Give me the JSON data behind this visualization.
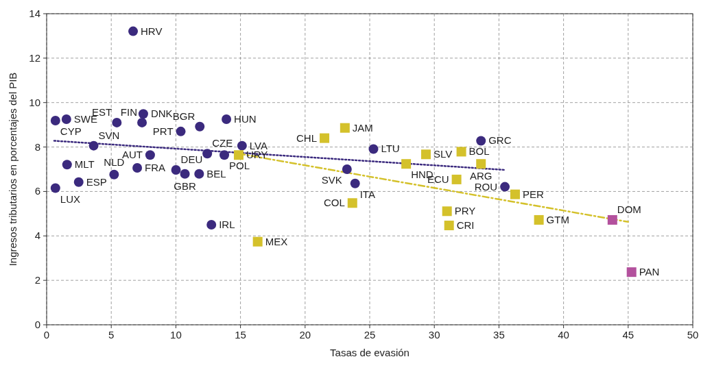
{
  "chart_data": {
    "type": "scatter",
    "xlabel": "Tasas de evasión",
    "ylabel": "Ingresos tributarios en porcentajes del PIB",
    "xlim": [
      0,
      50
    ],
    "ylim": [
      0,
      14
    ],
    "xticks": [
      0,
      5,
      10,
      15,
      20,
      25,
      30,
      35,
      40,
      45,
      50
    ],
    "yticks": [
      0,
      2,
      4,
      6,
      8,
      10,
      12,
      14
    ],
    "grid": true,
    "series": [
      {
        "marker": "circle",
        "color": "#3b2a7e",
        "x": [
          0.68,
          1.53,
          0.68,
          1.58,
          2.48,
          3.64,
          5.22,
          5.43,
          6.69,
          7.48,
          7.38,
          7.01,
          8.01,
          10.01,
          10.38,
          10.7,
          11.85,
          11.8,
          12.43,
          12.75,
          13.75,
          13.91,
          15.12,
          23.24,
          23.87,
          25.29,
          33.61,
          35.46
        ],
        "values": [
          9.19,
          9.25,
          6.15,
          7.21,
          6.42,
          8.06,
          6.76,
          9.1,
          13.21,
          9.49,
          9.1,
          7.06,
          7.64,
          6.97,
          8.7,
          6.79,
          8.92,
          6.79,
          7.7,
          4.5,
          7.64,
          9.25,
          8.06,
          7.0,
          6.36,
          7.91,
          8.28,
          6.21
        ]
      },
      {
        "marker": "square",
        "color": "#d4c12b",
        "x": [
          14.86,
          16.33,
          21.5,
          23.08,
          23.66,
          27.82,
          29.35,
          30.98,
          31.14,
          32.09,
          31.72,
          33.61,
          36.25,
          38.09
        ],
        "values": [
          7.64,
          3.74,
          8.4,
          8.86,
          5.48,
          7.24,
          7.67,
          5.11,
          4.47,
          7.79,
          6.54,
          7.24,
          5.87,
          4.72
        ]
      },
      {
        "marker": "square",
        "color": "#b3519d",
        "x": [
          43.78,
          45.26
        ],
        "values": [
          4.72,
          2.37
        ]
      },
      {
        "type": "line",
        "line_style": "dotted",
        "color": "#3b2a7e",
        "x": [
          0.58,
          35.46
        ],
        "values": [
          8.28,
          6.97
        ]
      },
      {
        "type": "line",
        "line_style": "dashed",
        "color": "#d4c12b",
        "x": [
          14.86,
          45.0
        ],
        "values": [
          7.7,
          4.63
        ]
      }
    ],
    "annotations": [
      {
        "text": "CYP",
        "x": 0.68,
        "y": 9.19
      },
      {
        "text": "SWE",
        "x": 1.53,
        "y": 9.25
      },
      {
        "text": "LUX",
        "x": 0.68,
        "y": 6.15
      },
      {
        "text": "MLT",
        "x": 1.58,
        "y": 7.21
      },
      {
        "text": "ESP",
        "x": 2.48,
        "y": 6.42
      },
      {
        "text": "SVN",
        "x": 3.64,
        "y": 8.06
      },
      {
        "text": "NLD",
        "x": 5.22,
        "y": 6.76
      },
      {
        "text": "EST",
        "x": 5.43,
        "y": 9.1
      },
      {
        "text": "HRV",
        "x": 6.69,
        "y": 13.21
      },
      {
        "text": "DNK",
        "x": 7.48,
        "y": 9.49
      },
      {
        "text": "FIN",
        "x": 7.38,
        "y": 9.1
      },
      {
        "text": "FRA",
        "x": 7.01,
        "y": 7.06
      },
      {
        "text": "AUT",
        "x": 8.01,
        "y": 7.64
      },
      {
        "text": "DEU",
        "x": 10.01,
        "y": 6.97
      },
      {
        "text": "PRT",
        "x": 10.38,
        "y": 8.7
      },
      {
        "text": "GBR",
        "x": 10.7,
        "y": 6.79
      },
      {
        "text": "BGR",
        "x": 11.85,
        "y": 8.92
      },
      {
        "text": "BEL",
        "x": 11.8,
        "y": 6.79
      },
      {
        "text": "CZE",
        "x": 12.43,
        "y": 7.7
      },
      {
        "text": "IRL",
        "x": 12.75,
        "y": 4.5
      },
      {
        "text": "POL",
        "x": 13.75,
        "y": 7.64
      },
      {
        "text": "HUN",
        "x": 13.91,
        "y": 9.25
      },
      {
        "text": "LVA",
        "x": 15.12,
        "y": 8.06
      },
      {
        "text": "SVK",
        "x": 23.24,
        "y": 7.0
      },
      {
        "text": "ITA",
        "x": 23.87,
        "y": 6.36
      },
      {
        "text": "LTU",
        "x": 25.29,
        "y": 7.91
      },
      {
        "text": "GRC",
        "x": 33.61,
        "y": 8.28
      },
      {
        "text": "ROU",
        "x": 35.46,
        "y": 6.21
      },
      {
        "text": "URY",
        "x": 14.86,
        "y": 7.64
      },
      {
        "text": "MEX",
        "x": 16.33,
        "y": 3.74
      },
      {
        "text": "CHL",
        "x": 21.5,
        "y": 8.4
      },
      {
        "text": "JAM",
        "x": 23.08,
        "y": 8.86
      },
      {
        "text": "COL",
        "x": 23.66,
        "y": 5.48
      },
      {
        "text": "HND",
        "x": 27.82,
        "y": 7.24
      },
      {
        "text": "SLV",
        "x": 29.35,
        "y": 7.67
      },
      {
        "text": "PRY",
        "x": 30.98,
        "y": 5.11
      },
      {
        "text": "CRI",
        "x": 31.14,
        "y": 4.47
      },
      {
        "text": "BOL",
        "x": 32.09,
        "y": 7.79
      },
      {
        "text": "ECU",
        "x": 31.72,
        "y": 6.54
      },
      {
        "text": "ARG",
        "x": 33.61,
        "y": 7.24
      },
      {
        "text": "PER",
        "x": 36.25,
        "y": 5.87
      },
      {
        "text": "GTM",
        "x": 38.09,
        "y": 4.72
      },
      {
        "text": "DOM",
        "x": 43.78,
        "y": 4.72
      },
      {
        "text": "PAN",
        "x": 45.26,
        "y": 2.37
      }
    ]
  }
}
